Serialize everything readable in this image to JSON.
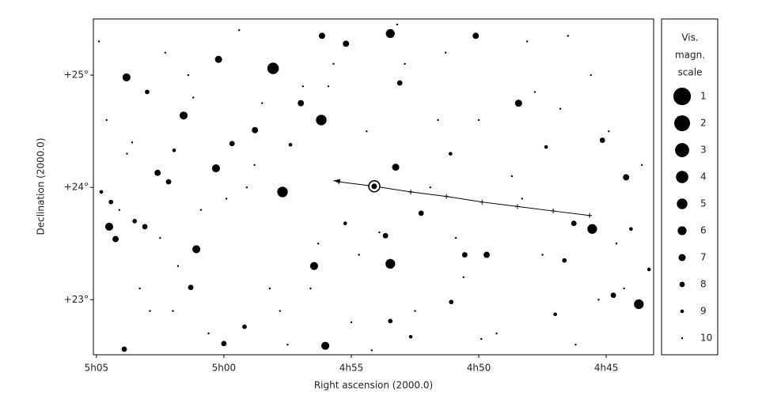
{
  "chart_data": {
    "type": "scatter",
    "x_label": "Right ascension (2000.0)",
    "y_label": "Declination (2000.0)",
    "xlim": [
      305.12,
      283.14
    ],
    "ylim": [
      22.51,
      25.5
    ],
    "xticks": [
      {
        "value": 305,
        "label": "5h05"
      },
      {
        "value": 300,
        "label": "5h00"
      },
      {
        "value": 295,
        "label": "4h55"
      },
      {
        "value": 290,
        "label": "4h50"
      },
      {
        "value": 285,
        "label": "4h45"
      }
    ],
    "yticks": [
      {
        "value": 25,
        "label": "+25°"
      },
      {
        "value": 24,
        "label": "+24°"
      },
      {
        "value": 23,
        "label": "+23°"
      }
    ],
    "color": "#000000",
    "stars": {
      "x": [
        298.07,
        296.18,
        297.7,
        293.47,
        303.82,
        301.58,
        300.21,
        300.31,
        301.08,
        304.5,
        296.46,
        293.47,
        296.02,
        285.55,
        283.72,
        288.44,
        293.26,
        296.98,
        298.78,
        295.21,
        293.1,
        290.12,
        296.15,
        302.6,
        290.55,
        289.69,
        285.15,
        284.22,
        304.25,
        303.1,
        302.17,
        299.68,
        293.66,
        292.26,
        301.3,
        300.0,
        303.91,
        303.01,
        291.08,
        286.27,
        284.72,
        286.64,
        293.47,
        299.19,
        292.67,
        297.39,
        304.81,
        304.43,
        303.5,
        301.95,
        295.24,
        291.11,
        287.36,
        284.03,
        283.32,
        287.0,
        304.9,
        304.1,
        303.6,
        302.9,
        302.3,
        301.8,
        301.2,
        300.6,
        299.9,
        299.4,
        298.8,
        298.2,
        297.5,
        296.9,
        296.3,
        295.7,
        295.0,
        294.4,
        293.9,
        293.2,
        292.5,
        291.9,
        291.3,
        290.6,
        290.0,
        289.3,
        288.7,
        288.1,
        287.5,
        286.8,
        286.2,
        285.6,
        284.9,
        284.3,
        283.6,
        304.6,
        303.3,
        302.0,
        300.9,
        299.1,
        297.8,
        295.9,
        294.7,
        292.9,
        291.6,
        289.9,
        288.3,
        286.5,
        284.6,
        303.8,
        302.5,
        301.4,
        298.5,
        296.6,
        294.2,
        290.9,
        287.8,
        285.3
      ],
      "y": [
        25.06,
        24.6,
        23.96,
        25.37,
        24.98,
        24.64,
        25.14,
        24.17,
        23.45,
        23.65,
        23.3,
        23.32,
        22.59,
        23.63,
        22.96,
        24.75,
        24.18,
        24.75,
        24.51,
        25.28,
        24.93,
        25.35,
        25.35,
        24.13,
        23.4,
        23.4,
        24.42,
        24.09,
        23.54,
        23.65,
        24.05,
        24.39,
        23.57,
        23.77,
        23.11,
        22.61,
        22.56,
        24.85,
        22.98,
        23.68,
        23.04,
        23.35,
        22.81,
        22.76,
        22.67,
        24.38,
        23.96,
        23.87,
        23.7,
        24.33,
        23.68,
        24.3,
        24.36,
        23.63,
        23.27,
        22.87,
        25.3,
        23.8,
        24.4,
        22.9,
        25.2,
        23.3,
        24.8,
        22.7,
        23.9,
        25.4,
        24.2,
        23.1,
        22.6,
        24.9,
        23.5,
        25.1,
        22.8,
        24.5,
        23.6,
        25.45,
        22.9,
        24.0,
        25.2,
        23.2,
        24.6,
        22.7,
        24.1,
        25.3,
        23.4,
        24.7,
        22.6,
        25.0,
        24.5,
        23.1,
        24.2,
        24.6,
        23.1,
        22.9,
        23.8,
        24.0,
        22.9,
        24.9,
        23.4,
        25.1,
        24.6,
        22.65,
        23.9,
        25.35,
        23.5,
        24.3,
        23.55,
        25.0,
        24.75,
        23.1,
        22.55,
        23.55,
        24.85,
        23.0
      ],
      "mag": [
        4.5,
        5,
        5,
        6,
        6.5,
        6.5,
        7,
        6.5,
        6.5,
        6.5,
        6.5,
        5.5,
        6.5,
        5.5,
        5.5,
        7,
        7,
        7.5,
        7.5,
        7.5,
        8,
        7.5,
        7.5,
        7.5,
        8,
        7.5,
        8,
        7.5,
        7.5,
        8,
        8,
        8,
        8,
        8,
        8,
        8,
        8,
        8.5,
        8.5,
        8,
        8,
        8.5,
        8.5,
        8.5,
        9,
        9,
        9,
        8.5,
        8.5,
        9,
        9,
        9,
        9,
        9,
        9,
        9,
        10,
        10,
        10,
        10,
        10,
        10,
        10,
        10,
        10,
        10,
        10,
        10,
        10,
        10,
        10,
        10,
        10,
        10,
        10,
        10,
        10,
        10,
        10,
        10,
        10,
        10,
        10,
        10,
        10,
        10,
        10,
        10,
        10,
        10,
        10,
        10,
        10,
        10,
        10,
        10,
        10,
        10,
        10,
        10,
        10,
        10,
        10,
        10,
        10,
        10,
        10,
        10,
        10,
        10,
        10,
        10,
        10,
        10
      ]
    },
    "target": {
      "x": 294.1,
      "y": 24.01
    },
    "track": {
      "x": [
        285.65,
        287.08,
        288.48,
        289.87,
        291.27,
        292.67,
        294.1,
        295.49,
        295.71
      ],
      "y": [
        23.75,
        23.79,
        23.83,
        23.87,
        23.92,
        23.96,
        24.01,
        24.05,
        24.06
      ]
    },
    "legend_title": [
      "Vis.",
      "magn.",
      "scale"
    ],
    "legend_magnitudes": [
      1,
      2,
      3,
      4,
      5,
      6,
      7,
      8,
      9,
      10
    ]
  }
}
